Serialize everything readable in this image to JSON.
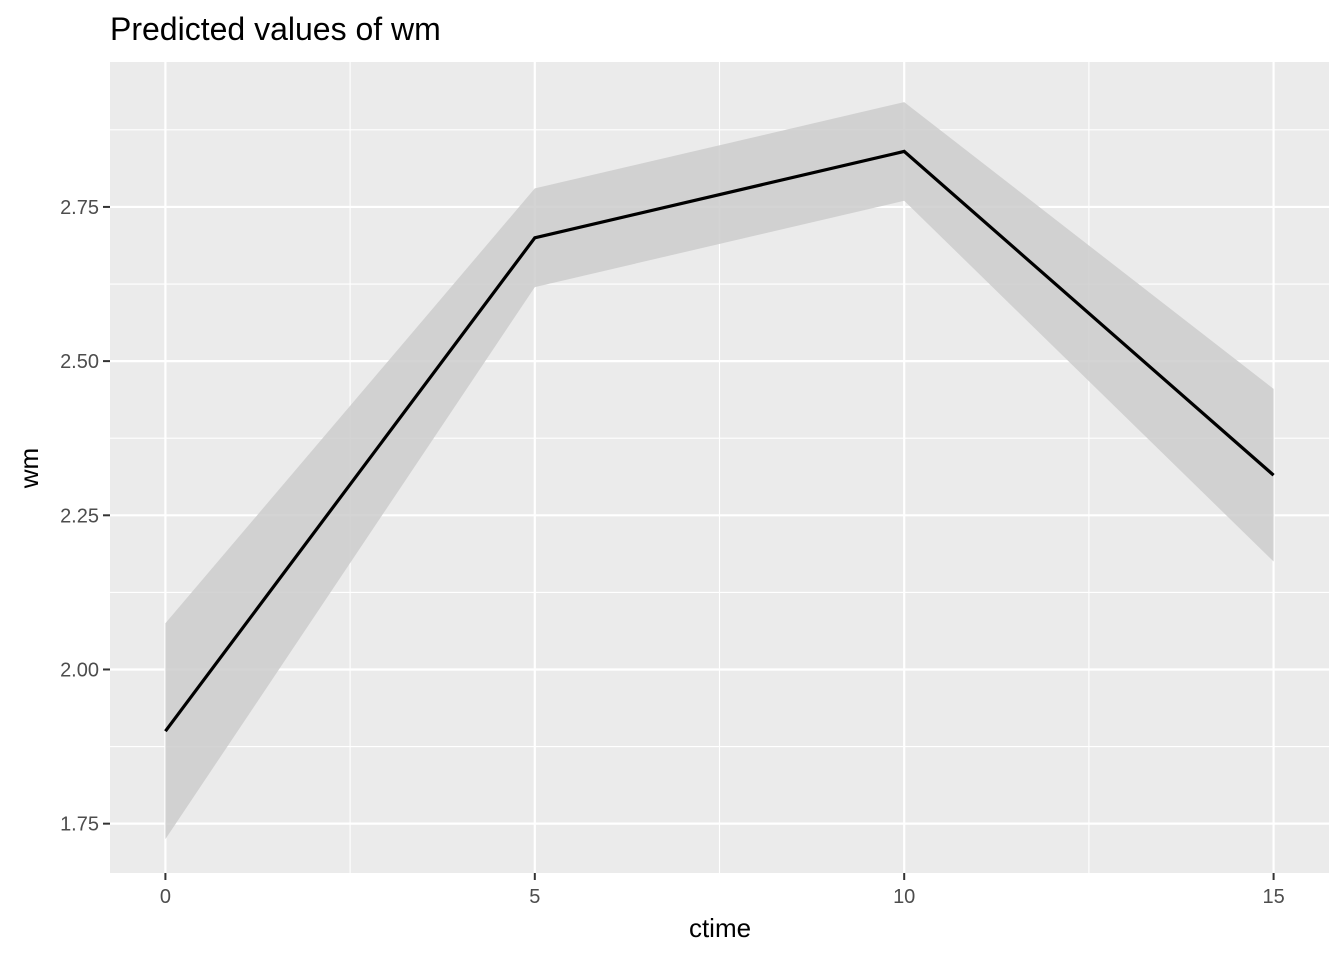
{
  "chart_data": {
    "type": "line",
    "title": "Predicted values of wm",
    "xlabel": "ctime",
    "ylabel": "wm",
    "x": [
      0,
      5,
      10,
      15
    ],
    "series": [
      {
        "values": [
          1.9,
          2.7,
          2.84,
          2.315
        ],
        "ci_lower": [
          1.725,
          2.62,
          2.76,
          2.175
        ],
        "ci_upper": [
          2.075,
          2.78,
          2.92,
          2.455
        ]
      }
    ],
    "xlim": [
      -0.75,
      15.75
    ],
    "ylim": [
      1.67,
      2.985
    ],
    "x_ticks": [
      0,
      5,
      10,
      15
    ],
    "x_tick_labels": [
      "0",
      "5",
      "10",
      "15"
    ],
    "y_ticks": [
      1.75,
      2.0,
      2.25,
      2.5,
      2.75
    ],
    "y_tick_labels": [
      "1.75",
      "2.00",
      "2.25",
      "2.50",
      "2.75"
    ],
    "grid": true,
    "colors": {
      "panel": "#ebebeb",
      "grid": "#ffffff",
      "line": "#000000",
      "ribbon": "#cccccc"
    }
  }
}
